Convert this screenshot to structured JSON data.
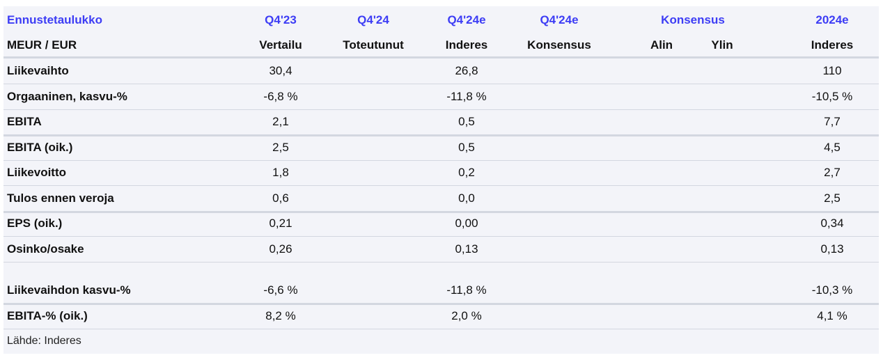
{
  "header": {
    "title": "Ennustetaulukko",
    "unit": "MEUR / EUR",
    "columns_top": [
      "Q4'23",
      "Q4'24",
      "Q4'24e",
      "Q4'24e",
      "Konsensus",
      "2024e"
    ],
    "columns_sub": [
      "Vertailu",
      "Toteutunut",
      "Inderes",
      "Konsensus",
      "Alin",
      "Ylin",
      "Inderes"
    ]
  },
  "rows": [
    {
      "label": "Liikevaihto",
      "q423": "30,4",
      "q424e": "26,8",
      "y2024e": "110"
    },
    {
      "label": "Orgaaninen, kasvu-%",
      "q423": "-6,8 %",
      "q424e": "-11,8 %",
      "y2024e": "-10,5 %"
    },
    {
      "label": "EBITA",
      "q423": "2,1",
      "q424e": "0,5",
      "y2024e": "7,7"
    },
    {
      "label": "EBITA (oik.)",
      "q423": "2,5",
      "q424e": "0,5",
      "y2024e": "4,5"
    },
    {
      "label": "Liikevoitto",
      "q423": "1,8",
      "q424e": "0,2",
      "y2024e": "2,7"
    },
    {
      "label": "Tulos ennen veroja",
      "q423": "0,6",
      "q424e": "0,0",
      "y2024e": "2,5"
    },
    {
      "label": "EPS (oik.)",
      "q423": "0,21",
      "q424e": "0,00",
      "y2024e": "0,34"
    },
    {
      "label": "Osinko/osake",
      "q423": "0,26",
      "q424e": "0,13",
      "y2024e": "0,13"
    },
    {
      "label": "Liikevaihdon kasvu-%",
      "q423": "-6,6 %",
      "q424e": "-11,8 %",
      "y2024e": "-10,3 %"
    },
    {
      "label": "EBITA-% (oik.)",
      "q423": "8,2 %",
      "q424e": "2,0 %",
      "y2024e": "4,1 %"
    }
  ],
  "source": "Lähde: Inderes",
  "colors": {
    "accent": "#3d3df5",
    "background": "#f3f4f9",
    "border": "#d3d7e0"
  }
}
